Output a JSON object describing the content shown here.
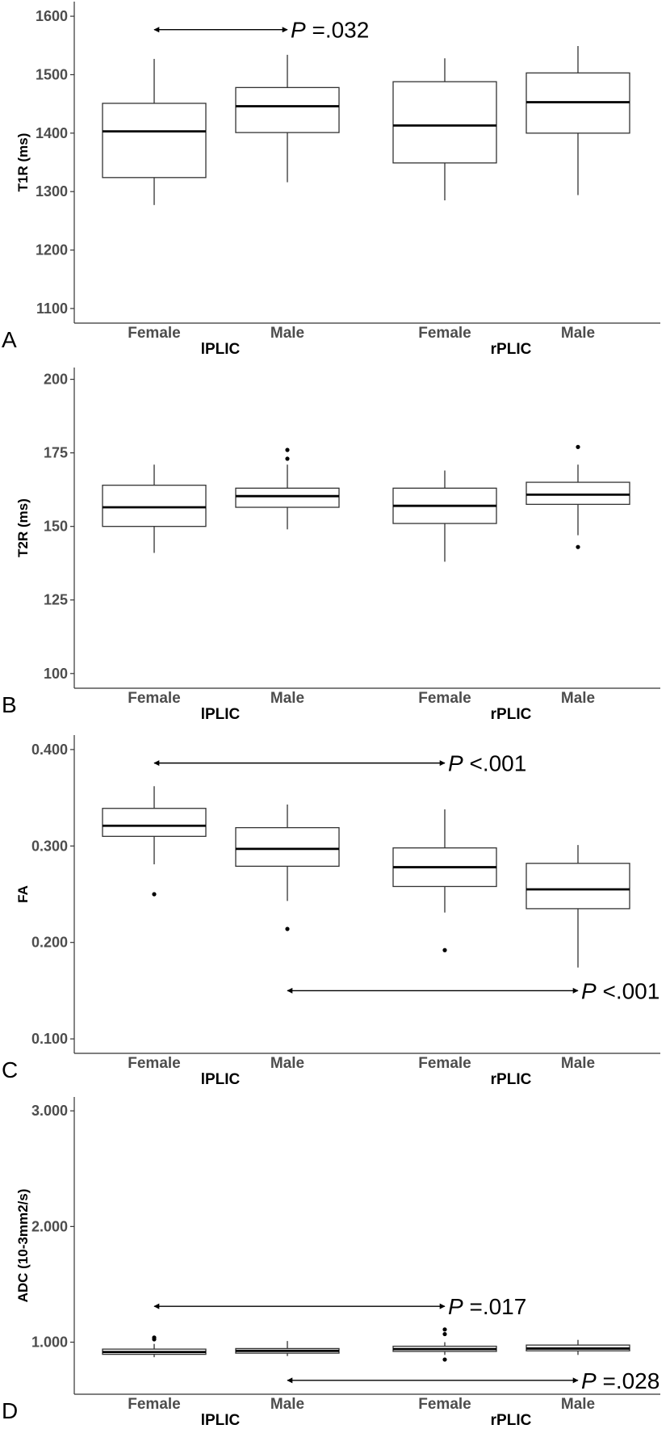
{
  "chart_data": [
    {
      "type": "box",
      "panel_label": "A",
      "ylabel": "T1R (ms)",
      "ylim": [
        1075,
        1625
      ],
      "yticks": [
        1100,
        1200,
        1300,
        1400,
        1500,
        1600
      ],
      "tick_labels": [
        "1100",
        "1200",
        "1300",
        "1400",
        "1500",
        "1600"
      ],
      "categories": [
        "Female",
        "Male",
        "Female",
        "Male"
      ],
      "groups": [
        "lPLIC",
        "rPLIC"
      ],
      "boxes": [
        {
          "min": 1277,
          "q1": 1324,
          "median": 1403,
          "q3": 1451,
          "max": 1527,
          "outliers": []
        },
        {
          "min": 1316,
          "q1": 1401,
          "median": 1446,
          "q3": 1478,
          "max": 1534,
          "outliers": []
        },
        {
          "min": 1285,
          "q1": 1349,
          "median": 1413,
          "q3": 1488,
          "max": 1528,
          "outliers": []
        },
        {
          "min": 1294,
          "q1": 1400,
          "median": 1453,
          "q3": 1503,
          "max": 1549,
          "outliers": []
        }
      ],
      "annotations": [
        {
          "from": 0,
          "to": 1,
          "y": 1577,
          "p_text": "=.032"
        }
      ]
    },
    {
      "type": "box",
      "panel_label": "B",
      "ylabel": "T2R (ms)",
      "ylim": [
        95,
        204
      ],
      "yticks": [
        100,
        125,
        150,
        175,
        200
      ],
      "tick_labels": [
        "100",
        "125",
        "150",
        "175",
        "200"
      ],
      "categories": [
        "Female",
        "Male",
        "Female",
        "Male"
      ],
      "groups": [
        "lPLIC",
        "rPLIC"
      ],
      "boxes": [
        {
          "min": 141,
          "q1": 150,
          "median": 156.5,
          "q3": 164,
          "max": 171,
          "outliers": []
        },
        {
          "min": 149,
          "q1": 156.5,
          "median": 160.3,
          "q3": 163,
          "max": 171,
          "outliers": [
            173,
            176
          ]
        },
        {
          "min": 138,
          "q1": 151,
          "median": 157,
          "q3": 163,
          "max": 169,
          "outliers": []
        },
        {
          "min": 147,
          "q1": 157.5,
          "median": 160.8,
          "q3": 165,
          "max": 171,
          "outliers": [
            177,
            143
          ]
        }
      ],
      "annotations": []
    },
    {
      "type": "box",
      "panel_label": "C",
      "ylabel": "FA",
      "ylim": [
        0.085,
        0.415
      ],
      "yticks": [
        0.1,
        0.2,
        0.3,
        0.4
      ],
      "tick_labels": [
        "0.100",
        "0.200",
        "0.300",
        "0.400"
      ],
      "categories": [
        "Female",
        "Male",
        "Female",
        "Male"
      ],
      "groups": [
        "lPLIC",
        "rPLIC"
      ],
      "boxes": [
        {
          "min": 0.281,
          "q1": 0.31,
          "median": 0.321,
          "q3": 0.339,
          "max": 0.362,
          "outliers": [
            0.25
          ]
        },
        {
          "min": 0.243,
          "q1": 0.279,
          "median": 0.297,
          "q3": 0.319,
          "max": 0.343,
          "outliers": [
            0.214
          ]
        },
        {
          "min": 0.231,
          "q1": 0.258,
          "median": 0.278,
          "q3": 0.298,
          "max": 0.338,
          "outliers": [
            0.192
          ]
        },
        {
          "min": 0.174,
          "q1": 0.235,
          "median": 0.255,
          "q3": 0.282,
          "max": 0.301,
          "outliers": []
        }
      ],
      "annotations": [
        {
          "from": 0,
          "to": 2,
          "y": 0.386,
          "p_text": "<.001"
        },
        {
          "from": 1,
          "to": 3,
          "y": 0.15,
          "p_text": "<.001"
        }
      ]
    },
    {
      "type": "box",
      "panel_label": "D",
      "ylabel": "ADC (10-3mm2/s)",
      "ylim": [
        0.55,
        3.12
      ],
      "yticks": [
        1.0,
        2.0,
        3.0
      ],
      "tick_labels": [
        "1.000",
        "2.000",
        "3.000"
      ],
      "categories": [
        "Female",
        "Male",
        "Female",
        "Male"
      ],
      "groups": [
        "lPLIC",
        "rPLIC"
      ],
      "boxes": [
        {
          "min": 0.87,
          "q1": 0.895,
          "median": 0.915,
          "q3": 0.94,
          "max": 0.985,
          "outliers": [
            1.025,
            1.04
          ]
        },
        {
          "min": 0.88,
          "q1": 0.905,
          "median": 0.925,
          "q3": 0.945,
          "max": 1.01,
          "outliers": []
        },
        {
          "min": 0.89,
          "q1": 0.92,
          "median": 0.94,
          "q3": 0.965,
          "max": 1.0,
          "outliers": [
            1.07,
            1.11,
            0.85
          ]
        },
        {
          "min": 0.89,
          "q1": 0.925,
          "median": 0.945,
          "q3": 0.975,
          "max": 1.02,
          "outliers": []
        }
      ],
      "annotations": [
        {
          "from": 0,
          "to": 2,
          "y": 1.31,
          "p_text": "=.017"
        },
        {
          "from": 1,
          "to": 3,
          "y": 0.67,
          "p_text": "=.028"
        }
      ]
    }
  ],
  "p_symbol": "P"
}
